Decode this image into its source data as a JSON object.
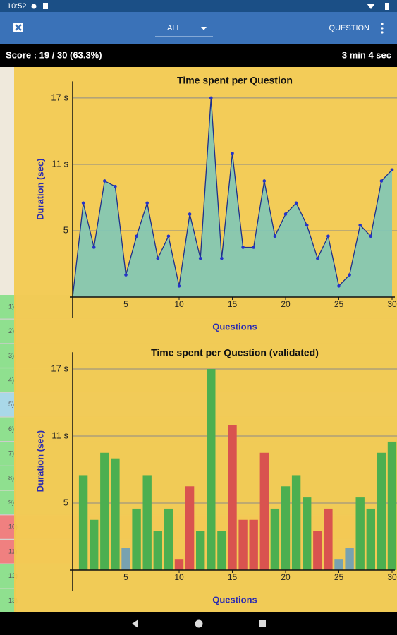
{
  "status_bar": {
    "time": "10:52"
  },
  "app_bar": {
    "filter": "ALL",
    "action": "QUESTION"
  },
  "score_bar": {
    "score": "Score : 19 / 30 (63.3%)",
    "duration": "3 min 4 sec"
  },
  "list": {
    "rows": [
      {
        "label": "1)",
        "color": "#8fe08f"
      },
      {
        "label": "2)",
        "color": "#8fe08f"
      },
      {
        "label": "3)",
        "color": "#8fe08f"
      },
      {
        "label": "4)",
        "color": "#8fe08f"
      },
      {
        "label": "5)",
        "color": "#a9d8e8"
      },
      {
        "label": "6)",
        "color": "#8fe08f"
      },
      {
        "label": "7)",
        "color": "#8fe08f"
      },
      {
        "label": "8)",
        "color": "#8fe08f"
      },
      {
        "label": "9)",
        "color": "#8fe08f"
      },
      {
        "label": "10)",
        "color": "#f08080"
      },
      {
        "label": "11)",
        "color": "#f08080"
      },
      {
        "label": "12)",
        "color": "#8fe08f"
      },
      {
        "label": "13)",
        "color": "#8fe08f"
      }
    ]
  },
  "chart_data": [
    {
      "type": "area",
      "title": "Time spent per Question",
      "x_label": "Questions",
      "y_label": "Duration (sec)",
      "x": [
        1,
        2,
        3,
        4,
        5,
        6,
        7,
        8,
        9,
        10,
        11,
        12,
        13,
        14,
        15,
        16,
        17,
        18,
        19,
        20,
        21,
        22,
        23,
        24,
        25,
        26,
        27,
        28,
        29,
        30
      ],
      "values": [
        7.5,
        3.5,
        9.5,
        9,
        1,
        4.5,
        7.5,
        2.5,
        4.5,
        0,
        6.5,
        2.5,
        17,
        2.5,
        12,
        3.5,
        3.5,
        9.5,
        4.5,
        6.5,
        7.5,
        5.5,
        2.5,
        4.5,
        0,
        1,
        5.5,
        4.5,
        9.5,
        10.5
      ],
      "xlim": [
        0,
        30
      ],
      "xticks": [
        5,
        10,
        15,
        20,
        25,
        30
      ],
      "ylim": [
        -1,
        18.5
      ],
      "yticks": [
        5,
        {
          "value": 11,
          "label": "11 s"
        },
        {
          "value": 17,
          "label": "17 s"
        }
      ],
      "color": "#1e2f8c",
      "fill_color": "#7fc8b8",
      "grid": true
    },
    {
      "type": "bar",
      "title": "Time spent per Question (validated)",
      "x_label": "Questions",
      "y_label": "Duration (sec)",
      "x": [
        1,
        2,
        3,
        4,
        5,
        6,
        7,
        8,
        9,
        10,
        11,
        12,
        13,
        14,
        15,
        16,
        17,
        18,
        19,
        20,
        21,
        22,
        23,
        24,
        25,
        26,
        27,
        28,
        29,
        30
      ],
      "values": [
        7.5,
        3.5,
        9.5,
        9,
        1,
        4.5,
        7.5,
        2.5,
        4.5,
        0,
        6.5,
        2.5,
        17,
        2.5,
        12,
        3.5,
        3.5,
        9.5,
        4.5,
        6.5,
        7.5,
        5.5,
        2.5,
        4.5,
        0,
        1,
        5.5,
        4.5,
        9.5,
        10.5
      ],
      "colors": [
        "#4caf50",
        "#4caf50",
        "#4caf50",
        "#4caf50",
        "#78a2b0",
        "#4caf50",
        "#4caf50",
        "#4caf50",
        "#4caf50",
        "#d9534f",
        "#d9534f",
        "#4caf50",
        "#4caf50",
        "#4caf50",
        "#d9534f",
        "#d9534f",
        "#d9534f",
        "#d9534f",
        "#4caf50",
        "#4caf50",
        "#4caf50",
        "#4caf50",
        "#d9534f",
        "#d9534f",
        "#78a2b0",
        "#78a2b0",
        "#4caf50",
        "#4caf50",
        "#4caf50",
        "#4caf50"
      ],
      "xlim": [
        0,
        30
      ],
      "xticks": [
        5,
        10,
        15,
        20,
        25,
        30
      ],
      "ylim": [
        -1,
        18.5
      ],
      "yticks": [
        5,
        {
          "value": 11,
          "label": "11 s"
        },
        {
          "value": 17,
          "label": "17 s"
        }
      ],
      "grid": true
    }
  ]
}
